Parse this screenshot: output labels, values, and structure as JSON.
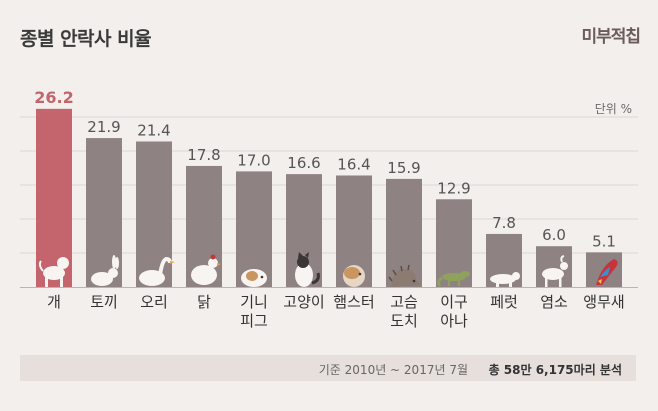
{
  "header": {
    "title": "종별 안락사 비율",
    "brand": "미부적칩"
  },
  "footer": {
    "basis": "기준 2010년 ~ 2017년 7월",
    "total": "총 58만 6,175마리 분석"
  },
  "colors": {
    "bar": "#8f8283",
    "highlight": "#c4646c",
    "label": "#555555",
    "highlight_label": "#c4646c",
    "grid": "#ddd6d3"
  },
  "chart_data": {
    "type": "bar",
    "unit_label": "단위 %",
    "categories": [
      "개",
      "토끼",
      "오리",
      "닭",
      "기니 피그",
      "고양이",
      "햄스터",
      "고슴 도치",
      "이구 아나",
      "페럿",
      "염소",
      "앵무새"
    ],
    "category_lines": [
      [
        "개"
      ],
      [
        "토끼"
      ],
      [
        "오리"
      ],
      [
        "닭"
      ],
      [
        "기니",
        "피그"
      ],
      [
        "고양이"
      ],
      [
        "햄스터"
      ],
      [
        "고슴",
        "도치"
      ],
      [
        "이구",
        "아나"
      ],
      [
        "페럿"
      ],
      [
        "염소"
      ],
      [
        "앵무새"
      ]
    ],
    "values": [
      26.2,
      21.9,
      21.4,
      17.8,
      17.0,
      16.6,
      16.4,
      15.9,
      12.9,
      7.8,
      6.0,
      5.1
    ],
    "value_labels": [
      "26.2",
      "21.9",
      "21.4",
      "17.8",
      "17.0",
      "16.6",
      "16.4",
      "15.9",
      "12.9",
      "7.8",
      "6.0",
      "5.1"
    ],
    "highlight_index": 0,
    "icons": [
      "dog-icon",
      "rabbit-icon",
      "duck-icon",
      "chicken-icon",
      "guinea-pig-icon",
      "cat-icon",
      "hamster-icon",
      "hedgehog-icon",
      "iguana-icon",
      "ferret-icon",
      "goat-icon",
      "parrot-icon"
    ],
    "ylim": [
      0,
      30
    ],
    "grid": true
  }
}
